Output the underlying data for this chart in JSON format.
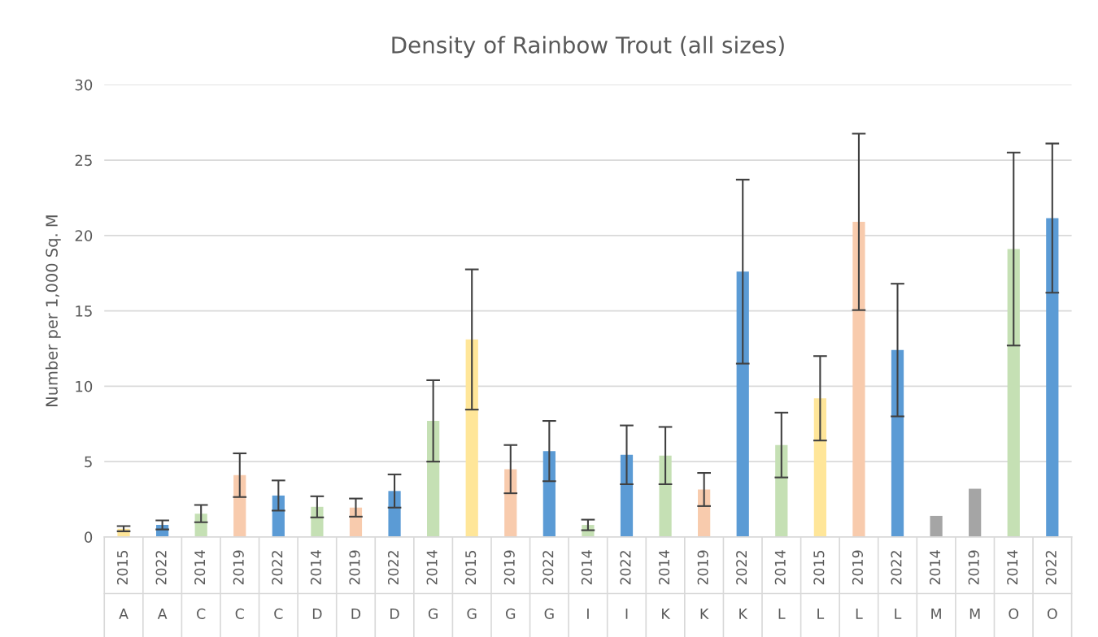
{
  "chart_data": {
    "type": "bar",
    "title": "Density of Rainbow Trout (all sizes)",
    "ylabel": "Number per 1,000 Sq. M",
    "categories": [
      "2015\nA",
      "2022\nA",
      "2014\nC",
      "2019\nC",
      "2022\nC",
      "2014\nD",
      "2019\nD",
      "2022\nD",
      "2014\nG",
      "2015\nG",
      "2019\nG",
      "2022\nG",
      "2014\nI",
      "2022\nI",
      "2014\nK",
      "2019\nK",
      "2022\nK",
      "2014\nL",
      "2015\nL",
      "2019\nL",
      "2022\nL",
      "2014\nM",
      "2019\nM",
      "2014\nO",
      "2022\nO"
    ],
    "values": [
      0.55,
      0.8,
      1.55,
      4.1,
      2.75,
      2.0,
      1.95,
      3.05,
      7.7,
      13.1,
      4.5,
      5.7,
      0.8,
      5.45,
      5.4,
      3.15,
      17.6,
      6.1,
      9.2,
      20.9,
      12.4,
      1.4,
      3.2,
      19.1,
      21.15
    ],
    "errors": [
      0.17,
      0.3,
      0.57,
      1.45,
      1.0,
      0.7,
      0.6,
      1.1,
      2.7,
      4.65,
      1.6,
      2.0,
      0.35,
      1.95,
      1.9,
      1.1,
      6.1,
      2.15,
      2.8,
      5.85,
      4.4,
      null,
      null,
      6.4,
      4.95
    ],
    "colors": [
      "#ffe699",
      "#5b9bd5",
      "#c5e0b4",
      "#f8cbad",
      "#5b9bd5",
      "#c5e0b4",
      "#f8cbad",
      "#5b9bd5",
      "#c5e0b4",
      "#ffe699",
      "#f8cbad",
      "#5b9bd5",
      "#c5e0b4",
      "#5b9bd5",
      "#c5e0b4",
      "#f8cbad",
      "#5b9bd5",
      "#c5e0b4",
      "#ffe699",
      "#f8cbad",
      "#5b9bd5",
      "#a5a5a5",
      "#a5a5a5",
      "#c5e0b4",
      "#5b9bd5"
    ],
    "ylim": [
      0,
      30
    ],
    "yticks": [
      0,
      5,
      10,
      15,
      20,
      25,
      30
    ],
    "grid": "y"
  }
}
